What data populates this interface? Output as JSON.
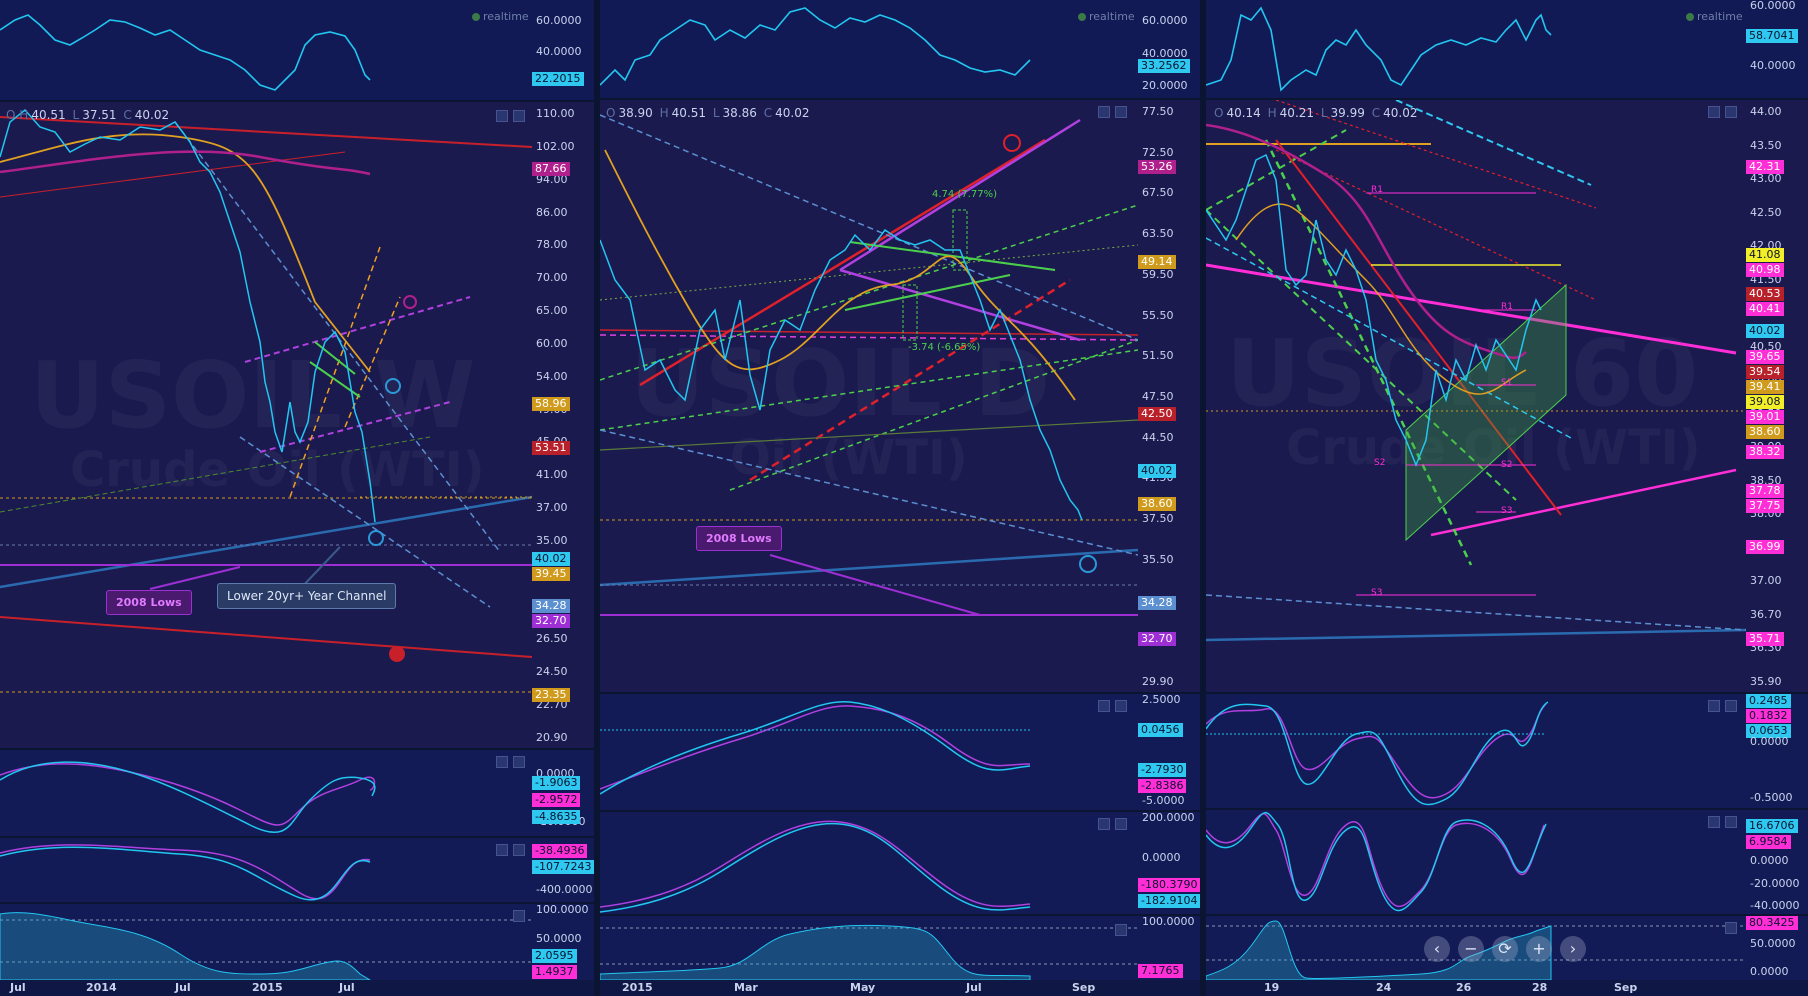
{
  "left": {
    "realtime": "realtime",
    "ohlc": {
      "o": "O",
      "h": "H",
      "hv": "40.51",
      "l": "L",
      "lv": "37.51",
      "c": "C",
      "cv": "40.02"
    },
    "top_ticks": [
      "60.0000",
      "40.0000"
    ],
    "top_tag": "22.2015",
    "main_ticks": [
      "110.00",
      "102.00",
      "94.00",
      "86.00",
      "78.00",
      "70.00",
      "65.00",
      "60.00",
      "54.00",
      "49.00",
      "45.00",
      "41.00",
      "37.00",
      "35.00",
      "32.00",
      "29.00",
      "26.50",
      "24.50",
      "22.70",
      "20.90"
    ],
    "main_tags": [
      {
        "v": "87.66",
        "c": "#b0208c"
      },
      {
        "v": "58.96",
        "c": "#d09a1c"
      },
      {
        "v": "53.51",
        "c": "#b8202a"
      },
      {
        "v": "40.02",
        "c": "#2ec8f0"
      },
      {
        "v": "39.45",
        "c": "#d09a1c"
      },
      {
        "v": "34.28",
        "c": "#5b8fd0"
      },
      {
        "v": "32.70",
        "c": "#9e2fd4"
      },
      {
        "v": "23.35",
        "c": "#d09a1c"
      }
    ],
    "macd_ticks": [
      "0.0000",
      "-10.0000"
    ],
    "macd_tags": [
      {
        "v": "-1.9063",
        "c": "#2ec8f0"
      },
      {
        "v": "-2.9572",
        "c": "#ff2ed7"
      },
      {
        "v": "-4.8635",
        "c": "#2ec8f0"
      }
    ],
    "cci_ticks": [
      "-400.0000"
    ],
    "cci_tags": [
      {
        "v": "-38.4936",
        "c": "#ff2ed7"
      },
      {
        "v": "-107.7243",
        "c": "#2ec8f0"
      }
    ],
    "rsi_ticks": [
      "100.0000",
      "50.0000"
    ],
    "rsi_tags": [
      {
        "v": "2.0595",
        "c": "#2ec8f0"
      },
      {
        "v": "1.4937",
        "c": "#ff2ed7"
      }
    ],
    "xlabels": [
      "Jul",
      "2014",
      "Jul",
      "2015",
      "Jul"
    ],
    "note_lows": "2008 Lows",
    "note_channel": "Lower 20yr+ Year Channel",
    "watermark1": "USOIL W",
    "watermark2": "Crude Oil (WTI)"
  },
  "middle": {
    "realtime": "realtime",
    "ohlc": {
      "o": "O",
      "ov": "38.90",
      "h": "H",
      "hv": "40.51",
      "l": "L",
      "lv": "38.86",
      "c": "C",
      "cv": "40.02"
    },
    "top_ticks": [
      "60.0000",
      "40.0000",
      "20.0000"
    ],
    "top_tag": "33.2562",
    "main_ticks": [
      "77.50",
      "72.50",
      "67.50",
      "63.50",
      "59.50",
      "55.50",
      "51.50",
      "47.50",
      "44.50",
      "41.50",
      "37.50",
      "35.50",
      "33.50",
      "31.50",
      "29.90"
    ],
    "main_tags": [
      {
        "v": "53.26",
        "c": "#b0208c"
      },
      {
        "v": "49.14",
        "c": "#d09a1c"
      },
      {
        "v": "42.50",
        "c": "#b8202a"
      },
      {
        "v": "40.02",
        "c": "#2ec8f0"
      },
      {
        "v": "38.60",
        "c": "#d09a1c"
      },
      {
        "v": "34.28",
        "c": "#5b8fd0"
      },
      {
        "v": "32.70",
        "c": "#9e2fd4"
      }
    ],
    "macd_ticks": [
      "2.5000",
      "-5.0000"
    ],
    "macd_tags": [
      {
        "v": "0.0456",
        "c": "#2ec8f0"
      },
      {
        "v": "-2.7930",
        "c": "#2ec8f0"
      },
      {
        "v": "-2.8386",
        "c": "#ff2ed7"
      }
    ],
    "cci_ticks": [
      "200.0000",
      "0.0000"
    ],
    "cci_tags": [
      {
        "v": "-180.3790",
        "c": "#ff2ed7"
      },
      {
        "v": "-182.9104",
        "c": "#2ec8f0"
      }
    ],
    "rsi_ticks": [
      "100.0000"
    ],
    "rsi_tags": [
      {
        "v": "7.1765",
        "c": "#ff2ed7"
      }
    ],
    "xlabels": [
      "2015",
      "Mar",
      "May",
      "Jul",
      "Sep"
    ],
    "note_lows": "2008 Lows",
    "ann1": "4.74 (7.77%)",
    "ann2": "-3.74 (-6.65%)",
    "watermark1": "USOIL D",
    "watermark2": "Oil (WTI)"
  },
  "right": {
    "realtime": "realtime",
    "ohlc": {
      "o": "O",
      "ov": "40.14",
      "h": "H",
      "hv": "40.21",
      "l": "L",
      "lv": "39.99",
      "c": "C",
      "cv": "40.02"
    },
    "top_ticks": [
      "60.0000",
      "40.0000"
    ],
    "top_tag": "58.7041",
    "main_ticks": [
      "44.00",
      "43.50",
      "43.00",
      "42.50",
      "42.00",
      "41.50",
      "41.00",
      "40.50",
      "40.00",
      "39.50",
      "39.00",
      "38.50",
      "38.00",
      "37.50",
      "37.00",
      "36.70",
      "36.30",
      "35.90"
    ],
    "main_tags": [
      {
        "v": "42.31",
        "c": "#ff2ed7"
      },
      {
        "v": "41.08",
        "c": "#f2ee28"
      },
      {
        "v": "40.98",
        "c": "#ff2ed7"
      },
      {
        "v": "40.53",
        "c": "#b8202a"
      },
      {
        "v": "40.41",
        "c": "#ff2ed7"
      },
      {
        "v": "40.02",
        "c": "#2ec8f0"
      },
      {
        "v": "39.65",
        "c": "#ff2ed7"
      },
      {
        "v": "39.54",
        "c": "#b8202a"
      },
      {
        "v": "39.41",
        "c": "#d09a1c"
      },
      {
        "v": "39.08",
        "c": "#f2ee28"
      },
      {
        "v": "39.01",
        "c": "#ff2ed7"
      },
      {
        "v": "38.60",
        "c": "#d09a1c"
      },
      {
        "v": "38.32",
        "c": "#ff2ed7"
      },
      {
        "v": "37.78",
        "c": "#ff2ed7"
      },
      {
        "v": "37.75",
        "c": "#ff2ed7"
      },
      {
        "v": "36.99",
        "c": "#ff2ed7"
      },
      {
        "v": "35.71",
        "c": "#ff2ed7"
      }
    ],
    "macd_ticks": [
      "0.0000",
      "-0.5000"
    ],
    "macd_tags": [
      {
        "v": "0.2485",
        "c": "#2ec8f0"
      },
      {
        "v": "0.1832",
        "c": "#ff2ed7"
      },
      {
        "v": "0.0653",
        "c": "#2ec8f0"
      }
    ],
    "cci_ticks": [
      "0.0000",
      "-20.0000",
      "-40.0000"
    ],
    "cci_tags": [
      {
        "v": "16.6706",
        "c": "#2ec8f0"
      },
      {
        "v": "6.9584",
        "c": "#ff2ed7"
      }
    ],
    "rsi_ticks": [
      "50.0000",
      "0.0000"
    ],
    "rsi_tags": [
      {
        "v": "80.3425",
        "c": "#ff2ed7"
      }
    ],
    "xlabels": [
      "19",
      "24",
      "26",
      "28",
      "Sep"
    ],
    "pivots": [
      "R1",
      "R1",
      "S1",
      "S2",
      "S2",
      "S3",
      "S3"
    ],
    "watermark1": "USOIL 60",
    "watermark2": "Crude Oil (WTI)",
    "zoom": [
      "‹",
      "−",
      "⟳",
      "+",
      "›"
    ]
  }
}
